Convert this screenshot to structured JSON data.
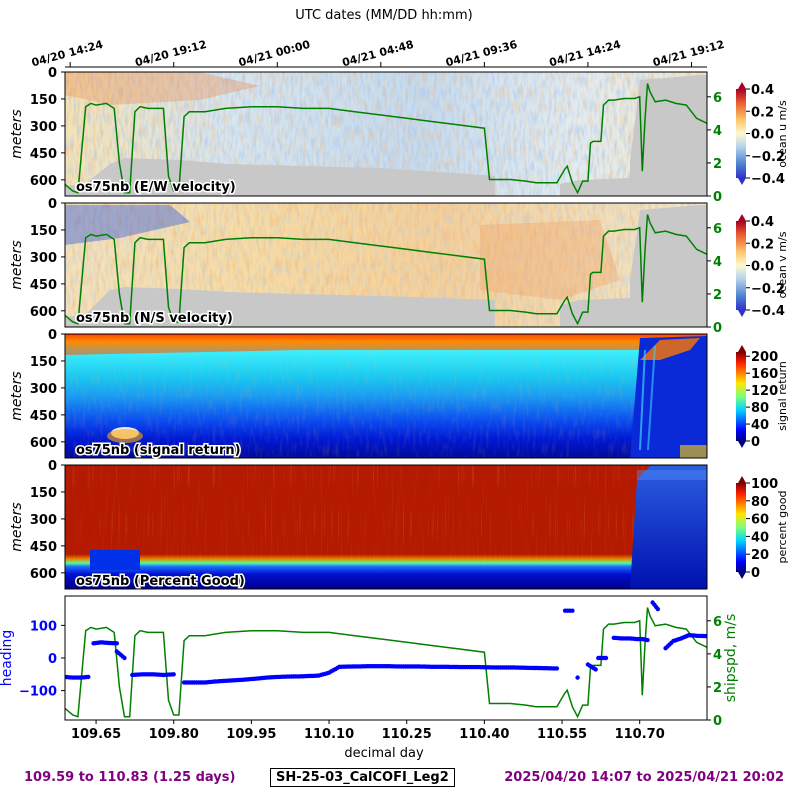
{
  "figure": {
    "top_axis_title": "UTC dates (MM/DD hh:mm)",
    "footer_left": "109.59 to 110.83 (1.25 days)",
    "footer_center": "SH-25-03_CalCOFI_Leg2",
    "footer_right": "2025/04/20 14:07 to 2025/04/21 20:02",
    "colors": {
      "heading": "#0000ff",
      "shipspd": "#008000",
      "no_data": "#c8c8c8",
      "footer_text": "#800080"
    }
  },
  "chart_data": [
    {
      "type": "heatmap",
      "panel": "ocean_u",
      "label": "os75nb (E/W velocity)",
      "ylabel": "meters",
      "yticks": [
        0,
        150,
        300,
        450,
        600
      ],
      "ylim": [
        690,
        0
      ],
      "xlim": [
        109.59,
        110.83
      ],
      "top_axis_ticks": [
        "04/20 14:24",
        "04/20 19:12",
        "04/21 00:00",
        "04/21 04:48",
        "04/21 09:36",
        "04/21 14:24",
        "04/21 19:12"
      ],
      "top_axis_tick_days": [
        109.6,
        109.8,
        110.0,
        110.2,
        110.4,
        110.6,
        110.8
      ],
      "colorbar": {
        "label": "ocean u m/s",
        "ticks": [
          "0.4",
          "0.2",
          "0.0",
          "−0.2",
          "−0.4"
        ],
        "range": [
          -0.4,
          0.4
        ],
        "colormap": "RdYlBu_r"
      },
      "right_axis": {
        "ticks": [
          "6",
          "4",
          "2",
          "0"
        ],
        "range": [
          0,
          7.5
        ]
      }
    },
    {
      "type": "heatmap",
      "panel": "ocean_v",
      "label": "os75nb (N/S velocity)",
      "ylabel": "meters",
      "yticks": [
        0,
        150,
        300,
        450,
        600
      ],
      "ylim": [
        690,
        0
      ],
      "xlim": [
        109.59,
        110.83
      ],
      "colorbar": {
        "label": "ocean v m/s",
        "ticks": [
          "0.4",
          "0.2",
          "0.0",
          "−0.2",
          "−0.4"
        ],
        "range": [
          -0.4,
          0.4
        ],
        "colormap": "RdYlBu_r"
      },
      "right_axis": {
        "ticks": [
          "6",
          "4",
          "2",
          "0"
        ],
        "range": [
          0,
          7.5
        ]
      }
    },
    {
      "type": "heatmap",
      "panel": "signal_return",
      "label": "os75nb (signal return)",
      "ylabel": "meters",
      "yticks": [
        0,
        150,
        300,
        450,
        600
      ],
      "ylim": [
        690,
        0
      ],
      "xlim": [
        109.59,
        110.83
      ],
      "colorbar": {
        "label": "signal return",
        "ticks": [
          "200",
          "160",
          "120",
          "80",
          "40",
          "0"
        ],
        "range": [
          0,
          210
        ],
        "colormap": "jet"
      }
    },
    {
      "type": "heatmap",
      "panel": "percent_good",
      "label": "os75nb (Percent Good)",
      "ylabel": "meters",
      "yticks": [
        0,
        150,
        300,
        450,
        600
      ],
      "ylim": [
        690,
        0
      ],
      "xlim": [
        109.59,
        110.83
      ],
      "colorbar": {
        "label": "percent good",
        "ticks": [
          "100",
          "80",
          "60",
          "40",
          "20",
          "0"
        ],
        "range": [
          0,
          100
        ],
        "colormap": "jet"
      }
    },
    {
      "type": "line",
      "panel": "heading_speed",
      "xlabel": "decimal day",
      "xticks": [
        "109.65",
        "109.80",
        "109.95",
        "110.10",
        "110.25",
        "110.40",
        "110.55",
        "110.70"
      ],
      "xtick_values": [
        109.65,
        109.8,
        109.95,
        110.1,
        110.25,
        110.4,
        110.55,
        110.7
      ],
      "xlim": [
        109.59,
        110.83
      ],
      "left_axis": {
        "label": "heading",
        "ticks": [
          "100",
          "0",
          "−100"
        ],
        "range": [
          -190,
          190
        ]
      },
      "right_axis": {
        "label": "shipspd, m/s",
        "ticks": [
          "6",
          "4",
          "2",
          "0"
        ],
        "range": [
          0,
          7.5
        ]
      },
      "series": [
        {
          "name": "heading",
          "style": "dots",
          "x": [
            109.59,
            109.605,
            109.62,
            109.635,
            109.645,
            109.66,
            109.675,
            109.69,
            109.69,
            109.705,
            109.72,
            109.74,
            109.76,
            109.78,
            109.8,
            109.82,
            109.84,
            109.86,
            109.88,
            109.9,
            109.92,
            109.94,
            109.96,
            109.98,
            110.0,
            110.02,
            110.05,
            110.08,
            110.1,
            110.12,
            110.15,
            110.18,
            110.21,
            110.24,
            110.27,
            110.3,
            110.33,
            110.36,
            110.39,
            110.42,
            110.45,
            110.48,
            110.51,
            110.54,
            110.556,
            110.565,
            110.57,
            110.58,
            110.6,
            110.615,
            110.62,
            110.635,
            110.65,
            110.665,
            110.68,
            110.695,
            110.705,
            110.715,
            110.725,
            110.735,
            110.75,
            110.765,
            110.78,
            110.795,
            110.81,
            110.83
          ],
          "y": [
            -58,
            -60,
            -60,
            -58,
            45,
            48,
            46,
            45,
            20,
            0,
            -52,
            -50,
            -50,
            -52,
            -50,
            -75,
            -75,
            -75,
            -72,
            -70,
            -68,
            -66,
            -63,
            -60,
            -58,
            -57,
            -56,
            -54,
            -45,
            -27,
            -26,
            -25,
            -25,
            -26,
            -26,
            -27,
            -27,
            -28,
            -28,
            -29,
            -29,
            -30,
            -31,
            -32,
            145,
            145,
            145,
            -60,
            -20,
            -35,
            0,
            0,
            62,
            60,
            60,
            58,
            58,
            55,
            170,
            150,
            30,
            52,
            60,
            70,
            68,
            67
          ]
        },
        {
          "name": "shipspd",
          "style": "line",
          "x": [
            109.59,
            109.605,
            109.615,
            109.63,
            109.64,
            109.65,
            109.67,
            109.685,
            109.695,
            109.705,
            109.715,
            109.725,
            109.735,
            109.75,
            109.77,
            109.78,
            109.79,
            109.8,
            109.81,
            109.82,
            109.83,
            109.84,
            109.86,
            109.9,
            109.95,
            110.0,
            110.05,
            110.1,
            110.15,
            110.2,
            110.25,
            110.3,
            110.35,
            110.4,
            110.41,
            110.42,
            110.45,
            110.48,
            110.5,
            110.52,
            110.54,
            110.555,
            110.56,
            110.57,
            110.58,
            110.59,
            110.6,
            110.605,
            110.61,
            110.625,
            110.63,
            110.64,
            110.65,
            110.67,
            110.69,
            110.7,
            110.705,
            110.71,
            110.715,
            110.72,
            110.73,
            110.75,
            110.77,
            110.79,
            110.81,
            110.83
          ],
          "y": [
            0.7,
            0.3,
            0.2,
            5.4,
            5.6,
            5.5,
            5.6,
            5.3,
            2.0,
            0.2,
            0.2,
            5.1,
            5.4,
            5.3,
            5.3,
            5.3,
            1.2,
            0.3,
            0.3,
            4.8,
            5.1,
            5.1,
            5.1,
            5.3,
            5.4,
            5.4,
            5.3,
            5.3,
            5.1,
            4.9,
            4.7,
            4.5,
            4.3,
            4.1,
            1.0,
            1.0,
            1.0,
            0.9,
            0.8,
            0.8,
            0.8,
            1.6,
            1.8,
            0.8,
            0.2,
            0.9,
            0.9,
            3.2,
            3.3,
            3.3,
            5.5,
            5.8,
            5.8,
            5.9,
            5.9,
            6.0,
            1.5,
            4.5,
            6.8,
            6.3,
            5.7,
            5.8,
            5.6,
            5.5,
            4.7,
            4.4
          ]
        }
      ]
    }
  ]
}
